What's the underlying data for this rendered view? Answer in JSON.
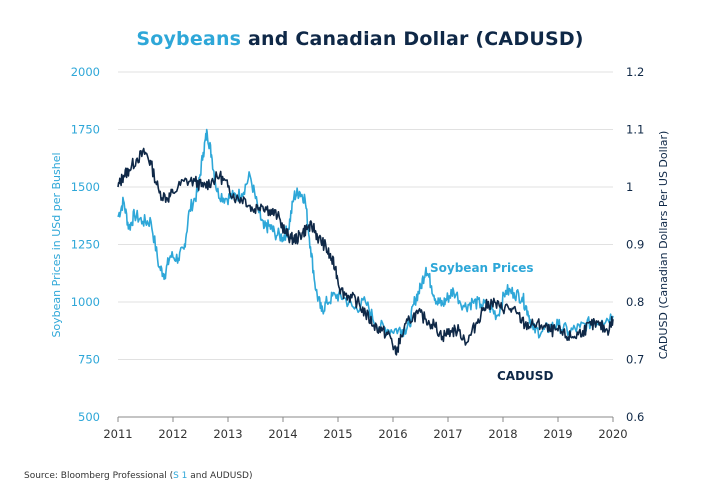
{
  "colors": {
    "soy": "#2ea7d8",
    "cad": "#0f2847",
    "grid": "#e1e1e1",
    "axis": "#888888",
    "xtick": "#333333"
  },
  "chart_data": {
    "type": "line",
    "title_parts": [
      "Soybeans",
      " and Canadian Dollar (CADUSD)"
    ],
    "xlabel": "",
    "ylabel_left": "Soybean Prices in USd per Bushel",
    "ylabel_right": "CADUSD (Canadian Dollars Per US Dollar)",
    "x_ticks": [
      "2011",
      "2012",
      "2013",
      "2014",
      "2015",
      "2016",
      "2017",
      "2018",
      "2019",
      "2020"
    ],
    "xlim": [
      2011,
      2020
    ],
    "ylim_left": [
      500,
      2000
    ],
    "ylim_right": [
      0.6,
      1.2
    ],
    "y_ticks_left": [
      "500",
      "750",
      "1000",
      "1250",
      "1500",
      "1750",
      "2000"
    ],
    "y_ticks_right": [
      "0.6",
      "0.7",
      "0.8",
      "0.9",
      "1",
      "1.1",
      "1.2"
    ],
    "series": [
      {
        "name": "Soybean Prices",
        "axis": "left",
        "x": [
          2011.0,
          2011.1,
          2011.2,
          2011.3,
          2011.45,
          2011.6,
          2011.75,
          2011.85,
          2011.95,
          2012.1,
          2012.2,
          2012.3,
          2012.45,
          2012.55,
          2012.62,
          2012.7,
          2012.8,
          2012.95,
          2013.1,
          2013.25,
          2013.4,
          2013.55,
          2013.65,
          2013.75,
          2013.85,
          2014.0,
          2014.1,
          2014.2,
          2014.3,
          2014.4,
          2014.5,
          2014.6,
          2014.7,
          2014.8,
          2014.95,
          2015.1,
          2015.3,
          2015.5,
          2015.7,
          2015.9,
          2016.1,
          2016.2,
          2016.3,
          2016.4,
          2016.5,
          2016.6,
          2016.7,
          2016.8,
          2016.9,
          2017.0,
          2017.1,
          2017.3,
          2017.45,
          2017.6,
          2017.75,
          2017.9,
          2018.05,
          2018.2,
          2018.35,
          2018.45,
          2018.55,
          2018.7,
          2018.85,
          2019.0,
          2019.2,
          2019.4,
          2019.6,
          2019.8,
          2020.0
        ],
        "values": [
          1370,
          1440,
          1320,
          1380,
          1350,
          1350,
          1150,
          1120,
          1200,
          1190,
          1230,
          1400,
          1480,
          1650,
          1740,
          1640,
          1480,
          1450,
          1460,
          1470,
          1550,
          1400,
          1320,
          1330,
          1300,
          1280,
          1320,
          1460,
          1480,
          1450,
          1240,
          1050,
          960,
          1000,
          1030,
          1020,
          970,
          1000,
          900,
          880,
          880,
          880,
          900,
          1010,
          1060,
          1150,
          1070,
          1000,
          990,
          1020,
          1050,
          980,
          1000,
          990,
          980,
          940,
          1050,
          1040,
          1020,
          960,
          880,
          870,
          890,
          900,
          870,
          890,
          910,
          920,
          940
        ]
      },
      {
        "name": "CADUSD",
        "axis": "right",
        "x": [
          2011.0,
          2011.1,
          2011.2,
          2011.35,
          2011.5,
          2011.6,
          2011.75,
          2011.9,
          2012.0,
          2012.2,
          2012.4,
          2012.55,
          2012.7,
          2012.85,
          2013.0,
          2013.15,
          2013.3,
          2013.45,
          2013.6,
          2013.75,
          2013.9,
          2014.05,
          2014.15,
          2014.25,
          2014.35,
          2014.45,
          2014.55,
          2014.65,
          2014.75,
          2014.85,
          2014.95,
          2015.05,
          2015.2,
          2015.35,
          2015.5,
          2015.65,
          2015.8,
          2015.95,
          2016.05,
          2016.15,
          2016.3,
          2016.45,
          2016.6,
          2016.75,
          2016.9,
          2017.05,
          2017.2,
          2017.35,
          2017.5,
          2017.65,
          2017.8,
          2017.95,
          2018.1,
          2018.25,
          2018.4,
          2018.55,
          2018.7,
          2018.85,
          2019.0,
          2019.15,
          2019.3,
          2019.45,
          2019.6,
          2019.75,
          2019.9,
          2020.0
        ],
        "values": [
          1.0,
          1.02,
          1.03,
          1.05,
          1.06,
          1.04,
          0.99,
          0.98,
          0.99,
          1.01,
          1.01,
          1.0,
          1.01,
          1.02,
          1.0,
          0.98,
          0.98,
          0.96,
          0.97,
          0.96,
          0.95,
          0.92,
          0.91,
          0.91,
          0.92,
          0.93,
          0.93,
          0.91,
          0.9,
          0.88,
          0.86,
          0.82,
          0.81,
          0.8,
          0.78,
          0.76,
          0.75,
          0.74,
          0.71,
          0.74,
          0.77,
          0.78,
          0.77,
          0.76,
          0.74,
          0.75,
          0.75,
          0.73,
          0.76,
          0.79,
          0.8,
          0.79,
          0.79,
          0.78,
          0.76,
          0.76,
          0.76,
          0.75,
          0.75,
          0.74,
          0.74,
          0.75,
          0.76,
          0.76,
          0.75,
          0.77
        ]
      }
    ],
    "annotations": [
      {
        "text": "Soybean Prices",
        "series": "Soybean Prices"
      },
      {
        "text": "CADUSD",
        "series": "CADUSD"
      }
    ],
    "grid": true,
    "legend": "inline-labels"
  },
  "source": {
    "prefix": "Source: Bloomberg Professional (",
    "highlight": "S 1",
    "suffix": " and AUDUSD)"
  }
}
